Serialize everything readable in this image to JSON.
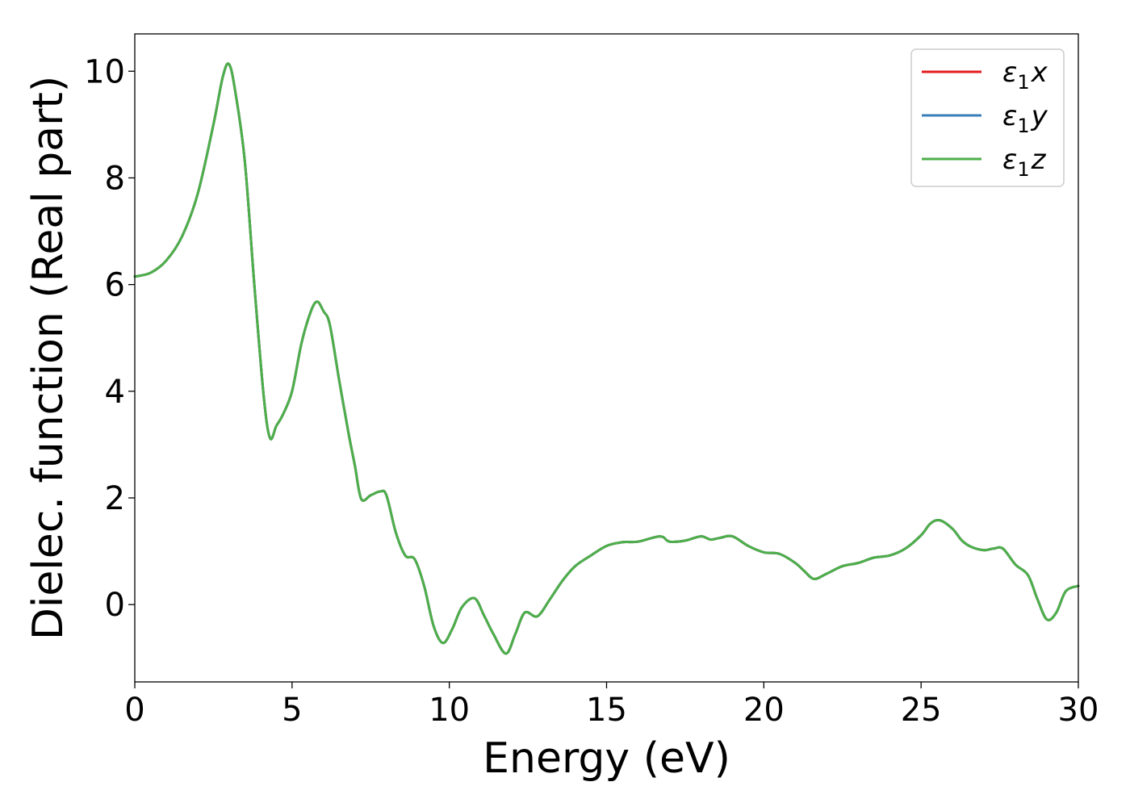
{
  "chart_data": {
    "type": "line",
    "title": "",
    "xlabel": "Energy (eV)",
    "ylabel": "Dielec. function (Real part)",
    "xlim": [
      0,
      30
    ],
    "ylim": [
      -1.45,
      10.7
    ],
    "xticks": [
      0,
      5,
      10,
      15,
      20,
      25,
      30
    ],
    "yticks": [
      0,
      2,
      4,
      6,
      8,
      10
    ],
    "xtick_labels": [
      "0",
      "5",
      "10",
      "15",
      "20",
      "25",
      "30"
    ],
    "ytick_labels": [
      "0",
      "2",
      "4",
      "6",
      "8",
      "10"
    ],
    "grid": false,
    "legend_position": "top-right",
    "x": [
      0,
      0.5,
      1.0,
      1.5,
      2.0,
      2.5,
      2.8,
      3.0,
      3.2,
      3.5,
      3.8,
      4.1,
      4.3,
      4.5,
      4.7,
      5.0,
      5.3,
      5.6,
      5.8,
      6.0,
      6.2,
      6.5,
      6.8,
      7.0,
      7.2,
      7.5,
      7.8,
      8.0,
      8.3,
      8.6,
      8.9,
      9.2,
      9.5,
      9.8,
      10.1,
      10.4,
      10.8,
      11.1,
      11.4,
      11.8,
      12.1,
      12.4,
      12.8,
      13.2,
      13.6,
      14.0,
      14.5,
      15.0,
      15.5,
      16.0,
      16.7,
      17.0,
      17.5,
      18.0,
      18.3,
      18.6,
      19.0,
      19.5,
      20.0,
      20.5,
      21.0,
      21.3,
      21.6,
      22.0,
      22.5,
      23.0,
      23.5,
      24.0,
      24.5,
      25.0,
      25.3,
      25.6,
      26.0,
      26.3,
      26.6,
      27.0,
      27.3,
      27.6,
      28.0,
      28.4,
      28.7,
      29.0,
      29.3,
      29.6,
      30.0
    ],
    "series": [
      {
        "name": "ε₁x",
        "legend_main": "ε",
        "legend_sub": "1",
        "legend_var": "x",
        "color": "#e41a1c",
        "y": [
          6.15,
          6.22,
          6.45,
          6.9,
          7.7,
          9.0,
          9.9,
          10.13,
          9.6,
          8.3,
          6.0,
          3.9,
          3.12,
          3.35,
          3.55,
          4.0,
          4.9,
          5.5,
          5.68,
          5.5,
          5.25,
          4.2,
          3.2,
          2.6,
          1.98,
          2.05,
          2.12,
          2.05,
          1.35,
          0.92,
          0.85,
          0.35,
          -0.4,
          -0.72,
          -0.45,
          -0.05,
          0.12,
          -0.2,
          -0.55,
          -0.92,
          -0.55,
          -0.15,
          -0.22,
          0.1,
          0.45,
          0.72,
          0.92,
          1.1,
          1.17,
          1.18,
          1.28,
          1.18,
          1.2,
          1.28,
          1.22,
          1.25,
          1.28,
          1.1,
          0.98,
          0.95,
          0.78,
          0.62,
          0.48,
          0.58,
          0.72,
          0.78,
          0.88,
          0.92,
          1.05,
          1.3,
          1.52,
          1.58,
          1.42,
          1.2,
          1.08,
          1.02,
          1.05,
          1.05,
          0.75,
          0.55,
          0.1,
          -0.28,
          -0.15,
          0.25,
          0.35
        ]
      },
      {
        "name": "ε₁y",
        "legend_main": "ε",
        "legend_sub": "1",
        "legend_var": "y",
        "color": "#377eb8",
        "y": [
          6.15,
          6.22,
          6.45,
          6.9,
          7.7,
          9.0,
          9.9,
          10.13,
          9.6,
          8.3,
          6.0,
          3.9,
          3.12,
          3.35,
          3.55,
          4.0,
          4.9,
          5.5,
          5.68,
          5.5,
          5.25,
          4.2,
          3.2,
          2.6,
          1.98,
          2.05,
          2.12,
          2.05,
          1.35,
          0.92,
          0.85,
          0.35,
          -0.4,
          -0.72,
          -0.45,
          -0.05,
          0.12,
          -0.2,
          -0.55,
          -0.92,
          -0.55,
          -0.15,
          -0.22,
          0.1,
          0.45,
          0.72,
          0.92,
          1.1,
          1.17,
          1.18,
          1.28,
          1.18,
          1.2,
          1.28,
          1.22,
          1.25,
          1.28,
          1.1,
          0.98,
          0.95,
          0.78,
          0.62,
          0.48,
          0.58,
          0.72,
          0.78,
          0.88,
          0.92,
          1.05,
          1.3,
          1.52,
          1.58,
          1.42,
          1.2,
          1.08,
          1.02,
          1.05,
          1.05,
          0.75,
          0.55,
          0.1,
          -0.28,
          -0.15,
          0.25,
          0.35
        ]
      },
      {
        "name": "ε₁z",
        "legend_main": "ε",
        "legend_sub": "1",
        "legend_var": "z",
        "color": "#4daf4a",
        "y": [
          6.15,
          6.22,
          6.45,
          6.9,
          7.7,
          9.0,
          9.9,
          10.13,
          9.6,
          8.3,
          6.0,
          3.9,
          3.12,
          3.35,
          3.55,
          4.0,
          4.9,
          5.5,
          5.68,
          5.5,
          5.25,
          4.2,
          3.2,
          2.6,
          1.98,
          2.05,
          2.12,
          2.05,
          1.35,
          0.92,
          0.85,
          0.35,
          -0.4,
          -0.72,
          -0.45,
          -0.05,
          0.12,
          -0.2,
          -0.55,
          -0.92,
          -0.55,
          -0.15,
          -0.22,
          0.1,
          0.45,
          0.72,
          0.92,
          1.1,
          1.17,
          1.18,
          1.28,
          1.18,
          1.2,
          1.28,
          1.22,
          1.25,
          1.28,
          1.1,
          0.98,
          0.95,
          0.78,
          0.62,
          0.48,
          0.58,
          0.72,
          0.78,
          0.88,
          0.92,
          1.05,
          1.3,
          1.52,
          1.58,
          1.42,
          1.2,
          1.08,
          1.02,
          1.05,
          1.05,
          0.75,
          0.55,
          0.1,
          -0.28,
          -0.15,
          0.25,
          0.35
        ]
      }
    ]
  }
}
